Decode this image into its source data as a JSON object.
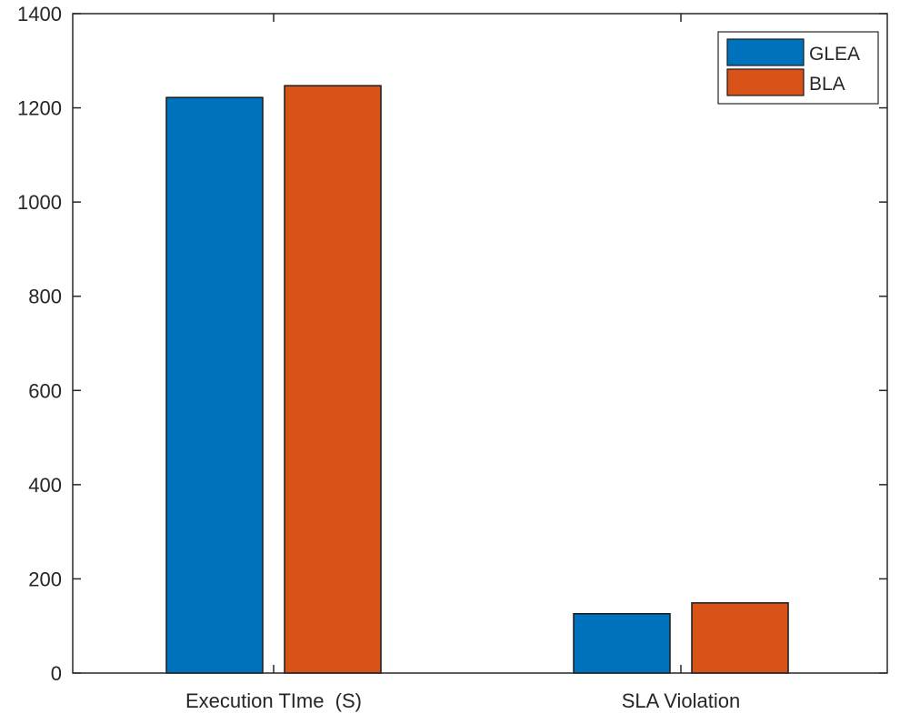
{
  "chart_data": {
    "type": "bar",
    "title": "",
    "xlabel": "",
    "ylabel": "",
    "categories": [
      "Execution TIme  (S)",
      "SLA Violation"
    ],
    "series": [
      {
        "name": "GLEA",
        "values": [
          1222,
          126
        ],
        "color": "#0072BD"
      },
      {
        "name": "BLA",
        "values": [
          1247,
          149
        ],
        "color": "#D95319"
      }
    ],
    "ylim": [
      0,
      1400
    ],
    "yticks": [
      0,
      200,
      400,
      600,
      800,
      1000,
      1200,
      1400
    ],
    "grid": false,
    "legend_position": "top-right"
  }
}
